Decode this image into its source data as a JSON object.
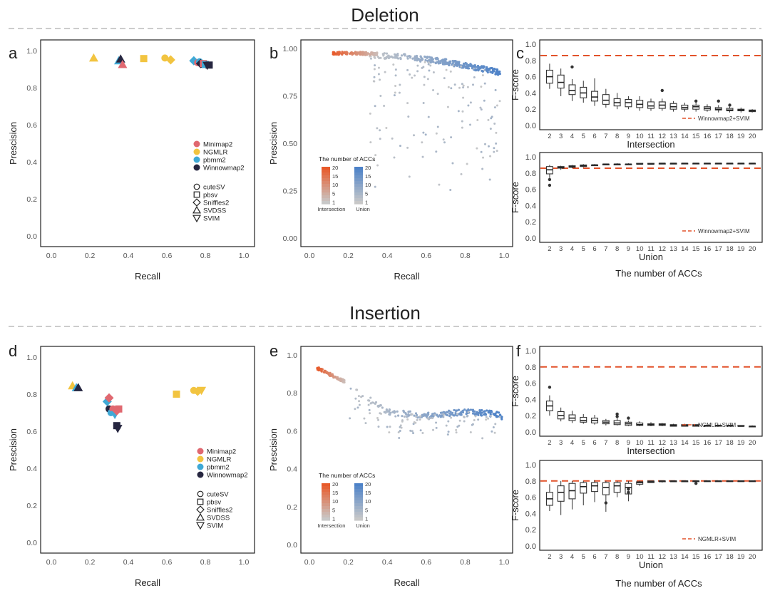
{
  "sections": [
    {
      "title": "Deletion"
    },
    {
      "title": "Insertion"
    }
  ],
  "footer": {
    "xlabel": "The number of ACCs"
  },
  "legend": {
    "aligners": [
      {
        "name": "Minimap2",
        "color": "#e06870"
      },
      {
        "name": "NGMLR",
        "color": "#f2c440"
      },
      {
        "name": "pbmm2",
        "color": "#3fa9d6"
      },
      {
        "name": "Winnowmap2",
        "color": "#262640"
      }
    ],
    "callers": [
      {
        "name": "cuteSV",
        "shape": "circle"
      },
      {
        "name": "pbsv",
        "shape": "square"
      },
      {
        "name": "Sniffles2",
        "shape": "diamond"
      },
      {
        "name": "SVDSS",
        "shape": "triangle-up"
      },
      {
        "name": "SVIM",
        "shape": "triangle-down"
      }
    ],
    "acc_title": "The number of ACCs",
    "acc_ticks": [
      "20",
      "15",
      "10",
      "5",
      "1"
    ],
    "acc_groups": [
      "Intersection",
      "Union"
    ],
    "intersection_color": "#e85a2a",
    "union_color": "#4d82c8",
    "low_color": "#c8c8c8"
  },
  "chart_data": [
    {
      "panel": "a",
      "type": "scatter",
      "title": "",
      "xlabel": "Recall",
      "ylabel": "Prescision",
      "xlim": [
        0,
        1
      ],
      "ylim": [
        0,
        1
      ],
      "xticks": [
        "0.0",
        "0.2",
        "0.4",
        "0.6",
        "0.8",
        "1.0"
      ],
      "yticks": [
        "0.0",
        "0.2",
        "0.4",
        "0.6",
        "0.8",
        "1.0"
      ],
      "points": [
        {
          "x": 0.22,
          "y": 0.96,
          "aligner": "NGMLR",
          "caller": "SVDSS"
        },
        {
          "x": 0.35,
          "y": 0.945,
          "aligner": "pbmm2",
          "caller": "SVDSS"
        },
        {
          "x": 0.36,
          "y": 0.955,
          "aligner": "Winnowmap2",
          "caller": "SVDSS"
        },
        {
          "x": 0.37,
          "y": 0.925,
          "aligner": "Minimap2",
          "caller": "SVDSS"
        },
        {
          "x": 0.48,
          "y": 0.957,
          "aligner": "NGMLR",
          "caller": "pbsv"
        },
        {
          "x": 0.59,
          "y": 0.96,
          "aligner": "NGMLR",
          "caller": "cuteSV"
        },
        {
          "x": 0.62,
          "y": 0.95,
          "aligner": "NGMLR",
          "caller": "Sniffles2"
        },
        {
          "x": 0.74,
          "y": 0.945,
          "aligner": "pbmm2",
          "caller": "Sniffles2"
        },
        {
          "x": 0.76,
          "y": 0.935,
          "aligner": "Minimap2",
          "caller": "cuteSV"
        },
        {
          "x": 0.77,
          "y": 0.94,
          "aligner": "pbmm2",
          "caller": "cuteSV"
        },
        {
          "x": 0.775,
          "y": 0.93,
          "aligner": "Winnowmap2",
          "caller": "Sniffles2"
        },
        {
          "x": 0.785,
          "y": 0.925,
          "aligner": "Winnowmap2",
          "caller": "cuteSV"
        },
        {
          "x": 0.79,
          "y": 0.93,
          "aligner": "Minimap2",
          "caller": "pbsv"
        },
        {
          "x": 0.8,
          "y": 0.925,
          "aligner": "pbmm2",
          "caller": "pbsv"
        },
        {
          "x": 0.81,
          "y": 0.92,
          "aligner": "Winnowmap2",
          "caller": "SVIM"
        },
        {
          "x": 0.82,
          "y": 0.922,
          "aligner": "Winnowmap2",
          "caller": "pbsv"
        }
      ]
    },
    {
      "panel": "b",
      "type": "scatter",
      "title": "",
      "xlabel": "Recall",
      "ylabel": "Prescision",
      "xlim": [
        0,
        1
      ],
      "ylim": [
        0,
        1
      ],
      "xticks": [
        "0.0",
        "0.2",
        "0.4",
        "0.6",
        "0.8",
        "1.0"
      ],
      "yticks": [
        "0.00",
        "0.25",
        "0.50",
        "0.75",
        "1.00"
      ],
      "cloud": {
        "intersection_curve": [
          [
            0.12,
            0.975
          ],
          [
            0.25,
            0.975
          ],
          [
            0.35,
            0.97
          ]
        ],
        "union_curve": [
          [
            0.3,
            0.965
          ],
          [
            0.5,
            0.955
          ],
          [
            0.7,
            0.93
          ],
          [
            0.85,
            0.9
          ],
          [
            0.93,
            0.885
          ],
          [
            0.98,
            0.87
          ]
        ],
        "scatter_band": [
          0.18,
          0.75
        ],
        "n_points": 520
      }
    },
    {
      "panel": "c-top",
      "type": "boxplot",
      "xlabel": "Intersection",
      "ylabel": "F-score",
      "ylim": [
        0,
        1
      ],
      "yticks": [
        "0.0",
        "0.2",
        "0.4",
        "0.6",
        "0.8",
        "1.0"
      ],
      "categories": [
        "2",
        "3",
        "4",
        "5",
        "6",
        "7",
        "8",
        "9",
        "10",
        "11",
        "12",
        "13",
        "14",
        "15",
        "16",
        "17",
        "18",
        "19",
        "20"
      ],
      "reference": {
        "label": "Winnowmap2+SVIM",
        "value": 0.86
      },
      "boxes": [
        [
          0.45,
          0.52,
          0.6,
          0.68,
          0.76
        ],
        [
          0.36,
          0.46,
          0.53,
          0.62,
          0.7
        ],
        [
          0.3,
          0.38,
          0.43,
          0.5,
          0.57
        ],
        [
          0.28,
          0.34,
          0.4,
          0.47,
          0.55
        ],
        [
          0.24,
          0.3,
          0.35,
          0.42,
          0.58
        ],
        [
          0.22,
          0.26,
          0.31,
          0.38,
          0.45
        ],
        [
          0.2,
          0.24,
          0.28,
          0.33,
          0.4
        ],
        [
          0.2,
          0.23,
          0.28,
          0.32,
          0.36
        ],
        [
          0.18,
          0.22,
          0.26,
          0.31,
          0.36
        ],
        [
          0.18,
          0.21,
          0.24,
          0.29,
          0.33
        ],
        [
          0.18,
          0.21,
          0.25,
          0.29,
          0.33
        ],
        [
          0.17,
          0.2,
          0.23,
          0.27,
          0.3
        ],
        [
          0.17,
          0.2,
          0.22,
          0.25,
          0.28
        ],
        [
          0.17,
          0.2,
          0.23,
          0.25,
          0.28
        ],
        [
          0.17,
          0.19,
          0.21,
          0.23,
          0.26
        ],
        [
          0.16,
          0.19,
          0.2,
          0.22,
          0.25
        ],
        [
          0.16,
          0.18,
          0.19,
          0.21,
          0.23
        ],
        [
          0.16,
          0.18,
          0.19,
          0.2,
          0.22
        ],
        [
          0.16,
          0.17,
          0.18,
          0.19,
          0.2
        ]
      ],
      "outliers": [
        [
          4,
          0.72
        ],
        [
          12,
          0.43
        ],
        [
          15,
          0.3
        ],
        [
          17,
          0.3
        ],
        [
          18,
          0.25
        ]
      ]
    },
    {
      "panel": "c-bottom",
      "type": "boxplot",
      "xlabel": "Union",
      "ylabel": "F-score",
      "ylim": [
        0,
        1
      ],
      "yticks": [
        "0.0",
        "0.2",
        "0.4",
        "0.6",
        "0.8",
        "1.0"
      ],
      "categories": [
        "2",
        "3",
        "4",
        "5",
        "6",
        "7",
        "8",
        "9",
        "10",
        "11",
        "12",
        "13",
        "14",
        "15",
        "16",
        "17",
        "18",
        "19",
        "20"
      ],
      "reference": {
        "label": "Winnowmap2+SVIM",
        "value": 0.86
      },
      "boxes": [
        [
          0.74,
          0.79,
          0.84,
          0.88,
          0.9
        ],
        [
          0.84,
          0.86,
          0.87,
          0.88,
          0.89
        ],
        [
          0.86,
          0.87,
          0.88,
          0.89,
          0.9
        ],
        [
          0.87,
          0.88,
          0.89,
          0.9,
          0.91
        ],
        [
          0.89,
          0.89,
          0.9,
          0.9,
          0.91
        ],
        [
          0.9,
          0.9,
          0.91,
          0.91,
          0.91
        ],
        [
          0.9,
          0.9,
          0.91,
          0.91,
          0.92
        ],
        [
          0.9,
          0.91,
          0.91,
          0.91,
          0.92
        ],
        [
          0.91,
          0.91,
          0.91,
          0.92,
          0.92
        ],
        [
          0.91,
          0.91,
          0.91,
          0.92,
          0.92
        ],
        [
          0.91,
          0.91,
          0.92,
          0.92,
          0.92
        ],
        [
          0.91,
          0.91,
          0.92,
          0.92,
          0.92
        ],
        [
          0.91,
          0.92,
          0.92,
          0.92,
          0.92
        ],
        [
          0.91,
          0.92,
          0.92,
          0.92,
          0.92
        ],
        [
          0.92,
          0.92,
          0.92,
          0.92,
          0.92
        ],
        [
          0.92,
          0.92,
          0.92,
          0.92,
          0.92
        ],
        [
          0.92,
          0.92,
          0.92,
          0.92,
          0.92
        ],
        [
          0.92,
          0.92,
          0.92,
          0.92,
          0.92
        ],
        [
          0.92,
          0.92,
          0.92,
          0.92,
          0.92
        ]
      ],
      "outliers": [
        [
          2,
          0.65
        ],
        [
          2,
          0.72
        ]
      ]
    },
    {
      "panel": "d",
      "type": "scatter",
      "title": "",
      "xlabel": "Recall",
      "ylabel": "Prescision",
      "xlim": [
        0,
        1
      ],
      "ylim": [
        0,
        1
      ],
      "xticks": [
        "0.0",
        "0.2",
        "0.4",
        "0.6",
        "0.8",
        "1.0"
      ],
      "yticks": [
        "0.0",
        "0.2",
        "0.4",
        "0.6",
        "0.8",
        "1.0"
      ],
      "points": [
        {
          "x": 0.11,
          "y": 0.845,
          "aligner": "NGMLR",
          "caller": "SVDSS"
        },
        {
          "x": 0.13,
          "y": 0.835,
          "aligner": "pbmm2",
          "caller": "SVDSS"
        },
        {
          "x": 0.14,
          "y": 0.835,
          "aligner": "Winnowmap2",
          "caller": "SVDSS"
        },
        {
          "x": 0.29,
          "y": 0.76,
          "aligner": "pbmm2",
          "caller": "Sniffles2"
        },
        {
          "x": 0.3,
          "y": 0.78,
          "aligner": "Minimap2",
          "caller": "Sniffles2"
        },
        {
          "x": 0.3,
          "y": 0.72,
          "aligner": "Winnowmap2",
          "caller": "cuteSV"
        },
        {
          "x": 0.31,
          "y": 0.7,
          "aligner": "pbmm2",
          "caller": "cuteSV"
        },
        {
          "x": 0.32,
          "y": 0.72,
          "aligner": "Minimap2",
          "caller": "cuteSV"
        },
        {
          "x": 0.33,
          "y": 0.69,
          "aligner": "pbmm2",
          "caller": "SVIM"
        },
        {
          "x": 0.34,
          "y": 0.71,
          "aligner": "Minimap2",
          "caller": "Sniffles2"
        },
        {
          "x": 0.35,
          "y": 0.72,
          "aligner": "Minimap2",
          "caller": "pbsv"
        },
        {
          "x": 0.34,
          "y": 0.63,
          "aligner": "Winnowmap2",
          "caller": "pbsv"
        },
        {
          "x": 0.345,
          "y": 0.615,
          "aligner": "Winnowmap2",
          "caller": "SVIM"
        },
        {
          "x": 0.65,
          "y": 0.8,
          "aligner": "NGMLR",
          "caller": "pbsv"
        },
        {
          "x": 0.74,
          "y": 0.82,
          "aligner": "NGMLR",
          "caller": "cuteSV"
        },
        {
          "x": 0.76,
          "y": 0.815,
          "aligner": "NGMLR",
          "caller": "Sniffles2"
        },
        {
          "x": 0.78,
          "y": 0.82,
          "aligner": "NGMLR",
          "caller": "SVIM"
        }
      ]
    },
    {
      "panel": "e",
      "type": "scatter",
      "title": "",
      "xlabel": "Recall",
      "ylabel": "Prescision",
      "xlim": [
        0,
        1
      ],
      "ylim": [
        0,
        1
      ],
      "xticks": [
        "0.0",
        "0.2",
        "0.4",
        "0.6",
        "0.8",
        "1.0"
      ],
      "yticks": [
        "0.0",
        "0.2",
        "0.4",
        "0.6",
        "0.8",
        "1.0"
      ],
      "cloud": {
        "intersection_curve": [
          [
            0.04,
            0.93
          ],
          [
            0.1,
            0.9
          ],
          [
            0.18,
            0.86
          ]
        ],
        "union_curve": [
          [
            0.2,
            0.84
          ],
          [
            0.4,
            0.7
          ],
          [
            0.6,
            0.68
          ],
          [
            0.8,
            0.7
          ],
          [
            0.95,
            0.69
          ],
          [
            0.99,
            0.675
          ]
        ],
        "scatter_band": [
          0.55,
          0.87
        ],
        "n_points": 380
      }
    },
    {
      "panel": "f-top",
      "type": "boxplot",
      "xlabel": "Intersection",
      "ylabel": "F-score",
      "ylim": [
        0,
        1
      ],
      "yticks": [
        "0.0",
        "0.2",
        "0.4",
        "0.6",
        "0.8",
        "1.0"
      ],
      "categories": [
        "2",
        "3",
        "4",
        "5",
        "6",
        "7",
        "8",
        "9",
        "10",
        "11",
        "12",
        "13",
        "14",
        "15",
        "16",
        "17",
        "18",
        "19",
        "20"
      ],
      "reference": {
        "label": "NGMLR+SVIM",
        "value": 0.8
      },
      "boxes": [
        [
          0.2,
          0.26,
          0.32,
          0.38,
          0.45
        ],
        [
          0.13,
          0.16,
          0.2,
          0.25,
          0.3
        ],
        [
          0.11,
          0.14,
          0.17,
          0.21,
          0.26
        ],
        [
          0.1,
          0.12,
          0.14,
          0.18,
          0.22
        ],
        [
          0.09,
          0.11,
          0.14,
          0.17,
          0.21
        ],
        [
          0.08,
          0.1,
          0.12,
          0.14,
          0.16
        ],
        [
          0.08,
          0.09,
          0.11,
          0.14,
          0.17
        ],
        [
          0.07,
          0.08,
          0.1,
          0.12,
          0.14
        ],
        [
          0.07,
          0.08,
          0.09,
          0.11,
          0.13
        ],
        [
          0.07,
          0.08,
          0.09,
          0.1,
          0.12
        ],
        [
          0.07,
          0.08,
          0.09,
          0.1,
          0.11
        ],
        [
          0.07,
          0.07,
          0.08,
          0.09,
          0.1
        ],
        [
          0.07,
          0.07,
          0.08,
          0.09,
          0.1
        ],
        [
          0.07,
          0.07,
          0.08,
          0.09,
          0.09
        ],
        [
          0.07,
          0.07,
          0.08,
          0.08,
          0.09
        ],
        [
          0.07,
          0.07,
          0.08,
          0.08,
          0.09
        ],
        [
          0.07,
          0.07,
          0.08,
          0.08,
          0.08
        ],
        [
          0.07,
          0.07,
          0.07,
          0.08,
          0.08
        ],
        [
          0.07,
          0.07,
          0.07,
          0.07,
          0.08
        ]
      ],
      "outliers": [
        [
          2,
          0.55
        ],
        [
          8,
          0.22
        ],
        [
          8,
          0.19
        ],
        [
          9,
          0.17
        ]
      ]
    },
    {
      "panel": "f-bottom",
      "type": "boxplot",
      "xlabel": "Union",
      "ylabel": "F-score",
      "ylim": [
        0,
        1
      ],
      "yticks": [
        "0.0",
        "0.2",
        "0.4",
        "0.6",
        "0.8",
        "1.0"
      ],
      "categories": [
        "2",
        "3",
        "4",
        "5",
        "6",
        "7",
        "8",
        "9",
        "10",
        "11",
        "12",
        "13",
        "14",
        "15",
        "16",
        "17",
        "18",
        "19",
        "20"
      ],
      "reference": {
        "label": "NGMLR+SVIM",
        "value": 0.8
      },
      "boxes": [
        [
          0.43,
          0.5,
          0.58,
          0.66,
          0.76
        ],
        [
          0.38,
          0.55,
          0.66,
          0.74,
          0.8
        ],
        [
          0.45,
          0.58,
          0.68,
          0.77,
          0.8
        ],
        [
          0.5,
          0.65,
          0.73,
          0.78,
          0.8
        ],
        [
          0.54,
          0.67,
          0.74,
          0.78,
          0.81
        ],
        [
          0.42,
          0.63,
          0.72,
          0.78,
          0.8
        ],
        [
          0.6,
          0.66,
          0.74,
          0.78,
          0.8
        ],
        [
          0.55,
          0.64,
          0.72,
          0.77,
          0.8
        ],
        [
          0.74,
          0.76,
          0.78,
          0.79,
          0.8
        ],
        [
          0.78,
          0.78,
          0.79,
          0.8,
          0.8
        ],
        [
          0.78,
          0.79,
          0.8,
          0.8,
          0.8
        ],
        [
          0.79,
          0.79,
          0.8,
          0.8,
          0.8
        ],
        [
          0.79,
          0.79,
          0.8,
          0.8,
          0.8
        ],
        [
          0.79,
          0.8,
          0.8,
          0.8,
          0.8
        ],
        [
          0.8,
          0.8,
          0.8,
          0.8,
          0.8
        ],
        [
          0.8,
          0.8,
          0.8,
          0.8,
          0.8
        ],
        [
          0.8,
          0.8,
          0.8,
          0.8,
          0.8
        ],
        [
          0.8,
          0.8,
          0.8,
          0.8,
          0.8
        ],
        [
          0.8,
          0.8,
          0.8,
          0.8,
          0.8
        ]
      ],
      "outliers": [
        [
          7,
          0.53
        ],
        [
          9,
          0.66
        ],
        [
          9,
          0.7
        ],
        [
          15,
          0.77
        ]
      ]
    }
  ]
}
